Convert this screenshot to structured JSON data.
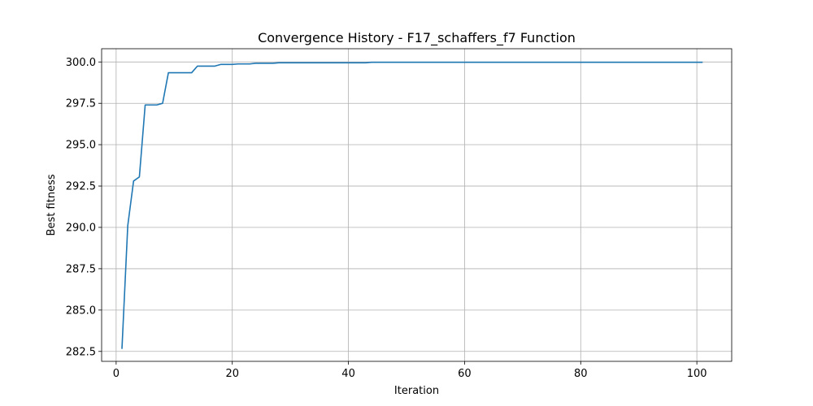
{
  "chart_data": {
    "type": "line",
    "title": "Convergence History - F17_schaffers_f7 Function",
    "xlabel": "Iteration",
    "ylabel": "Best fitness",
    "xlim": [
      -2.5,
      106
    ],
    "ylim": [
      281.9,
      300.8
    ],
    "grid": true,
    "line_color": "#1f77b4",
    "x_ticks": [
      0,
      20,
      40,
      60,
      80,
      100
    ],
    "x_tick_labels": [
      "0",
      "20",
      "40",
      "60",
      "80",
      "100"
    ],
    "y_ticks": [
      282.5,
      285.0,
      287.5,
      290.0,
      292.5,
      295.0,
      297.5,
      300.0
    ],
    "y_tick_labels": [
      "282.5",
      "285.0",
      "287.5",
      "290.0",
      "292.5",
      "295.0",
      "297.5",
      "300.0"
    ],
    "series": [
      {
        "x": [
          1,
          2,
          3,
          4,
          5,
          6,
          7,
          8,
          9,
          10,
          11,
          12,
          13,
          14,
          15,
          16,
          17,
          18,
          19,
          20,
          21,
          22,
          23,
          24,
          25,
          26,
          27,
          28,
          29,
          30,
          35,
          40,
          43,
          44,
          45,
          50,
          60,
          70,
          80,
          90,
          101
        ],
        "y": [
          282.65,
          290.1,
          292.8,
          293.05,
          297.4,
          297.4,
          297.4,
          297.5,
          299.35,
          299.35,
          299.35,
          299.35,
          299.35,
          299.75,
          299.75,
          299.75,
          299.75,
          299.85,
          299.85,
          299.85,
          299.88,
          299.88,
          299.88,
          299.92,
          299.92,
          299.92,
          299.92,
          299.95,
          299.95,
          299.95,
          299.95,
          299.95,
          299.95,
          299.98,
          299.98,
          299.98,
          299.98,
          299.98,
          299.98,
          299.98,
          299.98
        ]
      }
    ]
  }
}
